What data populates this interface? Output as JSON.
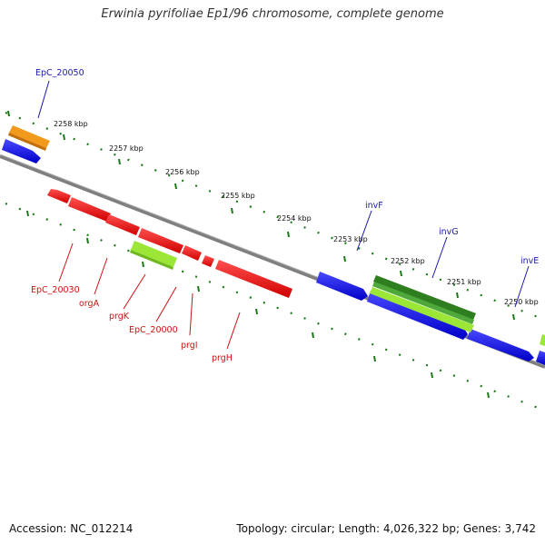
{
  "title": "Erwinia pyrifoliae Ep1/96 chromosome, complete genome",
  "footer": {
    "accession": "Accession: NC_012214",
    "summary": "Topology: circular; Length: 4,026,322 bp; Genes: 3,742"
  },
  "scale": {
    "labels": [
      "2258 kbp",
      "2257 kbp",
      "2256 kbp",
      "2255 kbp",
      "2254 kbp",
      "2253 kbp",
      "2252 kbp",
      "2251 kbp",
      "2250 kbp"
    ]
  },
  "genes_above": [
    "EpC_20050",
    "invF",
    "invG",
    "invE"
  ],
  "genes_below": [
    "EpC_20030",
    "orgA",
    "prgK",
    "EpC_20000",
    "prgI",
    "prgH"
  ],
  "colors": {
    "backbone": "#808080",
    "scale_dots": "#1a7a1a",
    "forward_gene": "#1010e0",
    "reverse_gene": "#e81010",
    "rna_green": "#9be637",
    "dark_green": "#2e7d1e",
    "orange": "#f29a1c"
  }
}
